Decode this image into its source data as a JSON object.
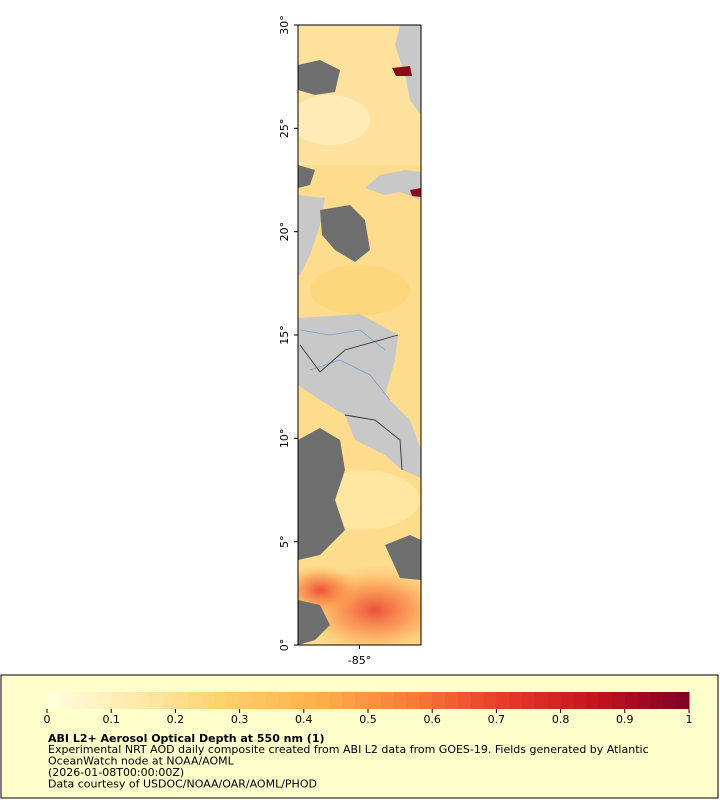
{
  "map": {
    "latlim": [
      0,
      30
    ],
    "lonlim": [
      -88,
      -82
    ],
    "lat_ticks": [
      {
        "value": 0,
        "label": "0°"
      },
      {
        "value": 5,
        "label": "5°"
      },
      {
        "value": 10,
        "label": "10°"
      },
      {
        "value": 15,
        "label": "15°"
      },
      {
        "value": 20,
        "label": "20°"
      },
      {
        "value": 25,
        "label": "25°"
      },
      {
        "value": 30,
        "label": "30°"
      }
    ],
    "lon_ticks": [
      {
        "value": -85,
        "label": "-85°"
      }
    ]
  },
  "legend": {
    "colorbar": {
      "range": [
        0,
        1
      ],
      "ticks": [
        0,
        0.1,
        0.2,
        0.3,
        0.4,
        0.5,
        0.6,
        0.7,
        0.8,
        0.9,
        1
      ],
      "colormap": [
        "#ffffe0",
        "#fee9a8",
        "#fdcf6a",
        "#fdae4b",
        "#f9793a",
        "#e8392a",
        "#c4121f",
        "#800026"
      ]
    },
    "title": "ABI L2+ Aerosol Optical Depth at 550 nm (1)",
    "lines": [
      "Experimental NRT AOD daily composite created from ABI L2 data from GOES-19. Fields generated by Atlantic",
      "OceanWatch node at NOAA/AOML",
      "(2026-01-08T00:00:00Z)",
      "Data courtesy of USDOC/NOAA/OAR/AOML/PHOD"
    ]
  }
}
